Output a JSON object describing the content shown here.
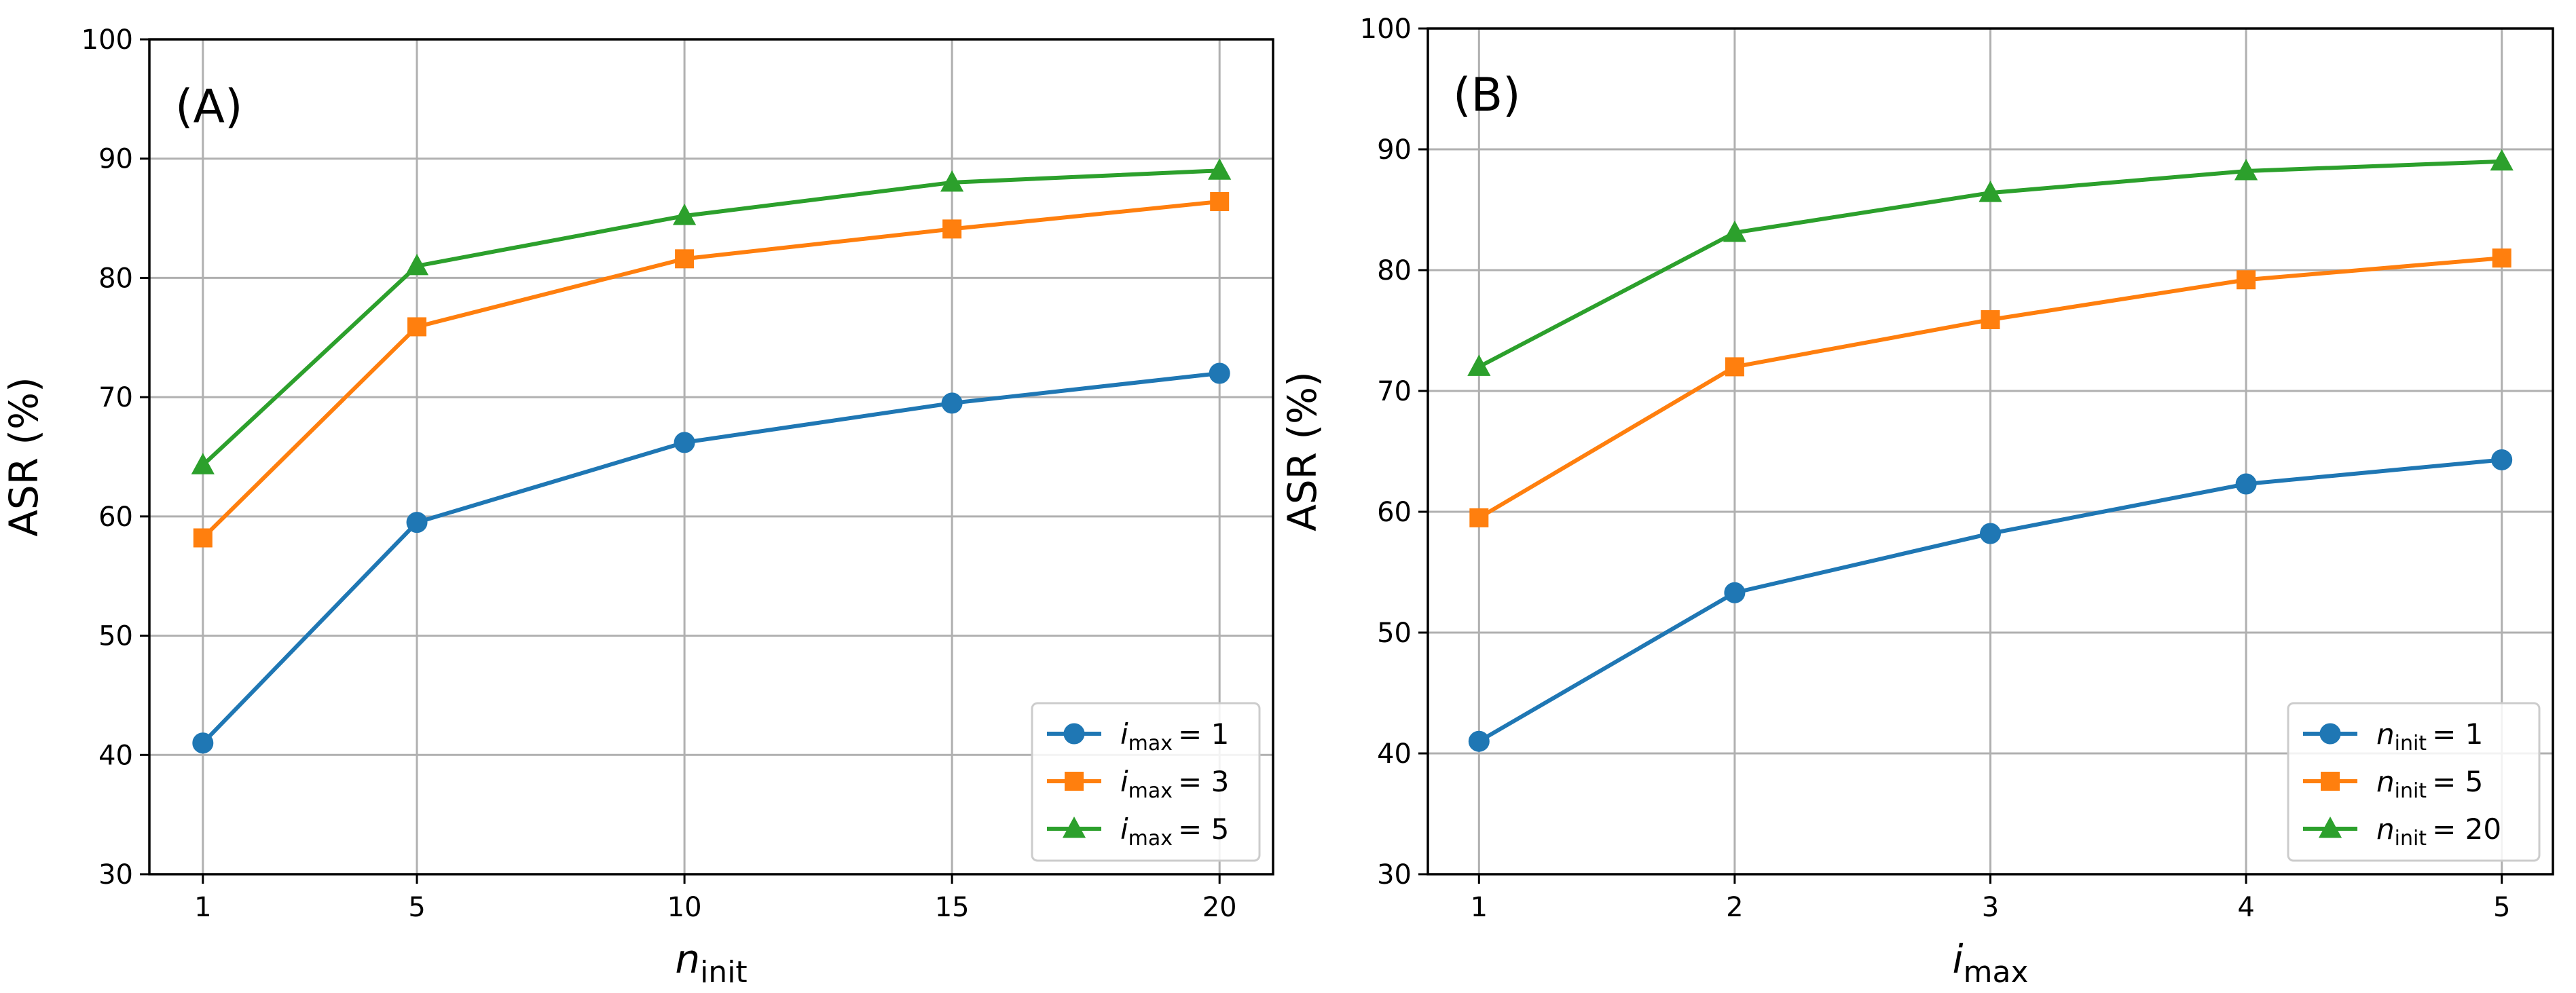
{
  "chart_data": [
    {
      "type": "line",
      "panel_label": "(A)",
      "x": [
        1,
        5,
        10,
        15,
        20
      ],
      "xticks": [
        "1",
        "5",
        "10",
        "15",
        "20"
      ],
      "xlim": [
        0,
        21
      ],
      "ylim": [
        30,
        100
      ],
      "yticks": [
        "30",
        "40",
        "50",
        "60",
        "70",
        "80",
        "90",
        "100"
      ],
      "grid": true,
      "xlabel": {
        "main": "n",
        "sub": "init"
      },
      "ylabel": "ASR (%)",
      "legend_position": "lower-right",
      "series": [
        {
          "name": "i_max = 1",
          "legend_var": "i",
          "legend_sub": "max",
          "legend_val": "= 1",
          "color": "#1f77b4",
          "marker": "circle",
          "values": [
            41.0,
            59.5,
            66.2,
            69.5,
            72.0
          ]
        },
        {
          "name": "i_max = 3",
          "legend_var": "i",
          "legend_sub": "max",
          "legend_val": "= 3",
          "color": "#ff7f0e",
          "marker": "square",
          "values": [
            58.2,
            75.9,
            81.6,
            84.1,
            86.4
          ]
        },
        {
          "name": "i_max = 5",
          "legend_var": "i",
          "legend_sub": "max",
          "legend_val": "= 5",
          "color": "#2ca02c",
          "marker": "triangle",
          "values": [
            64.3,
            81.0,
            85.2,
            88.0,
            89.0
          ]
        }
      ]
    },
    {
      "type": "line",
      "panel_label": "(B)",
      "x": [
        1,
        2,
        3,
        4,
        5
      ],
      "xticks": [
        "1",
        "2",
        "3",
        "4",
        "5"
      ],
      "xlim": [
        0.8,
        5.2
      ],
      "ylim": [
        30,
        100
      ],
      "yticks": [
        "30",
        "40",
        "50",
        "60",
        "70",
        "80",
        "90",
        "100"
      ],
      "grid": true,
      "xlabel": {
        "main": "i",
        "sub": "max"
      },
      "ylabel": "ASR (%)",
      "legend_position": "lower-right",
      "series": [
        {
          "name": "n_init = 1",
          "legend_var": "n",
          "legend_sub": "init",
          "legend_val": "= 1",
          "color": "#1f77b4",
          "marker": "circle",
          "values": [
            41.0,
            53.3,
            58.2,
            62.3,
            64.3
          ]
        },
        {
          "name": "n_init = 5",
          "legend_var": "n",
          "legend_sub": "init",
          "legend_val": "= 5",
          "color": "#ff7f0e",
          "marker": "square",
          "values": [
            59.5,
            72.0,
            75.9,
            79.2,
            81.0
          ]
        },
        {
          "name": "n_init = 20",
          "legend_var": "n",
          "legend_sub": "init",
          "legend_val": "= 20",
          "color": "#2ca02c",
          "marker": "triangle",
          "values": [
            72.0,
            83.1,
            86.4,
            88.2,
            89.0
          ]
        }
      ]
    }
  ]
}
